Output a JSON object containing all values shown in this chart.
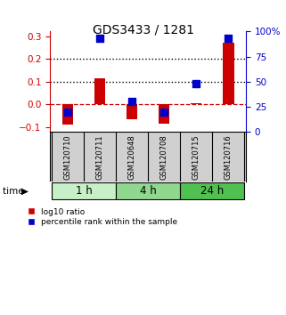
{
  "title": "GDS3433 / 1281",
  "samples": [
    "GSM120710",
    "GSM120711",
    "GSM120648",
    "GSM120708",
    "GSM120715",
    "GSM120716"
  ],
  "log10_ratio": [
    -0.09,
    0.115,
    -0.065,
    -0.085,
    0.005,
    0.27
  ],
  "percentile_rank": [
    0.2,
    0.93,
    0.3,
    0.2,
    0.48,
    0.93
  ],
  "time_groups": [
    {
      "label": "1 h",
      "span": [
        0,
        2
      ],
      "color": "#c8f0c8"
    },
    {
      "label": "4 h",
      "span": [
        2,
        4
      ],
      "color": "#90d890"
    },
    {
      "label": "24 h",
      "span": [
        4,
        6
      ],
      "color": "#50c050"
    }
  ],
  "ylim_left": [
    -0.12,
    0.32
  ],
  "ylim_right": [
    0,
    100
  ],
  "left_ticks": [
    -0.1,
    0.0,
    0.1,
    0.2,
    0.3
  ],
  "right_ticks": [
    0,
    25,
    50,
    75,
    100
  ],
  "bar_color": "#cc0000",
  "dot_color": "#0000cc",
  "zero_line_color": "#cc0000",
  "dotted_line_color": "#000000",
  "background_color": "#ffffff",
  "plot_bg_color": "#ffffff",
  "bar_width": 0.35,
  "dot_size": 28
}
